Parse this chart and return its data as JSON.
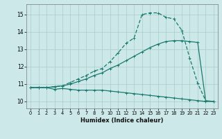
{
  "xlabel": "Humidex (Indice chaleur)",
  "background_color": "#cce8e8",
  "grid_color": "#aacccc",
  "line_color": "#1a7a6e",
  "x_min": -0.5,
  "x_max": 23.5,
  "y_min": 9.6,
  "y_max": 15.6,
  "curve1_x": [
    0,
    1,
    2,
    3,
    4,
    5,
    6,
    7,
    8,
    9,
    10,
    11,
    12,
    13,
    14,
    15,
    16,
    17,
    18,
    19,
    20,
    21,
    22,
    23
  ],
  "curve1_y": [
    10.8,
    10.8,
    10.8,
    10.7,
    10.75,
    10.7,
    10.65,
    10.65,
    10.65,
    10.65,
    10.6,
    10.55,
    10.5,
    10.45,
    10.4,
    10.35,
    10.3,
    10.25,
    10.2,
    10.15,
    10.1,
    10.05,
    10.0,
    10.0
  ],
  "curve2_x": [
    0,
    1,
    2,
    3,
    4,
    5,
    6,
    7,
    8,
    9,
    10,
    11,
    12,
    13,
    14,
    15,
    16,
    17,
    18,
    19,
    20,
    21,
    22,
    23
  ],
  "curve2_y": [
    10.8,
    10.8,
    10.8,
    10.85,
    10.9,
    11.0,
    11.15,
    11.3,
    11.5,
    11.65,
    11.9,
    12.1,
    12.35,
    12.6,
    12.85,
    13.1,
    13.3,
    13.45,
    13.5,
    13.5,
    13.45,
    13.4,
    10.05,
    10.0
  ],
  "curve3_x": [
    0,
    1,
    2,
    3,
    4,
    5,
    6,
    7,
    8,
    9,
    10,
    11,
    12,
    13,
    14,
    15,
    16,
    17,
    18,
    19,
    20,
    21,
    22,
    23
  ],
  "curve3_y": [
    10.8,
    10.8,
    10.8,
    10.85,
    10.9,
    11.1,
    11.3,
    11.5,
    11.75,
    11.9,
    12.3,
    12.8,
    13.35,
    13.65,
    15.0,
    15.1,
    15.1,
    14.85,
    14.75,
    14.1,
    12.5,
    11.05,
    10.05,
    null
  ],
  "yticks": [
    10,
    11,
    12,
    13,
    14,
    15
  ],
  "xticks": [
    0,
    1,
    2,
    3,
    4,
    5,
    6,
    7,
    8,
    9,
    10,
    11,
    12,
    13,
    14,
    15,
    16,
    17,
    18,
    19,
    20,
    21,
    22,
    23
  ]
}
